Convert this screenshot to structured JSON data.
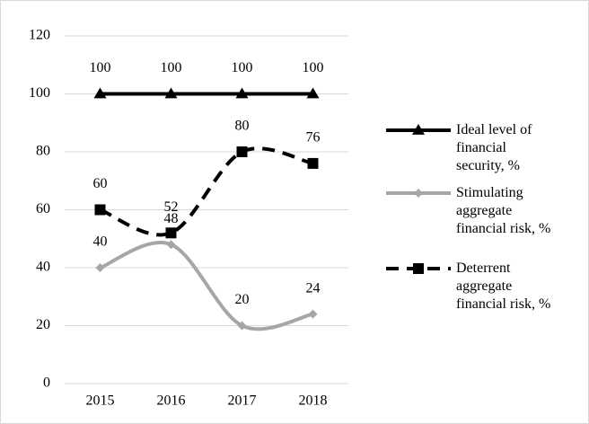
{
  "chart_data": {
    "type": "line",
    "categories": [
      "2015",
      "2016",
      "2017",
      "2018"
    ],
    "series": [
      {
        "name": "Ideal level of financial security, %",
        "color": "#000000",
        "values": [
          100,
          100,
          100,
          100
        ],
        "marker": "triangle",
        "dash": false,
        "smooth": false
      },
      {
        "name": "Stimulating aggregate financial risk, %",
        "color": "#a6a6a6",
        "values": [
          40,
          48,
          20,
          24
        ],
        "marker": "diamond",
        "dash": false,
        "smooth": true
      },
      {
        "name": "Deterrent aggregate financial risk, %",
        "color": "#000000",
        "values": [
          60,
          52,
          80,
          76
        ],
        "marker": "square",
        "dash": true,
        "smooth": true
      }
    ],
    "ylim": [
      0,
      120
    ],
    "yticks": [
      0,
      20,
      40,
      60,
      80,
      100,
      120
    ],
    "grid": true,
    "legend": "right",
    "data_labels": true
  }
}
